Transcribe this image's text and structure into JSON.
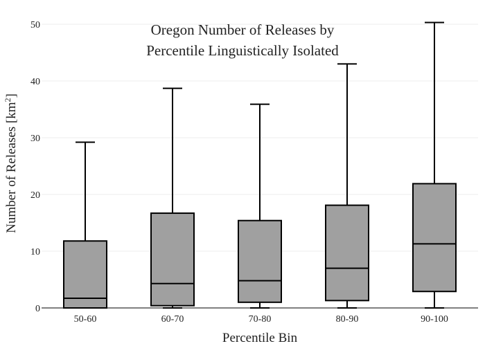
{
  "chart_data": {
    "type": "box",
    "title_lines": [
      "Oregon Number of Releases by",
      "Percentile Linguistically Isolated"
    ],
    "xlabel": "Percentile Bin",
    "ylabel": "Number of Releases  [km",
    "ylabel_sup": "2",
    "ylabel_close": "]",
    "ylim": [
      0,
      50
    ],
    "yticks": [
      0,
      10,
      20,
      30,
      40,
      50
    ],
    "grid": true,
    "categories": [
      "50-60",
      "60-70",
      "70-80",
      "80-90",
      "90-100"
    ],
    "boxes": [
      {
        "min": 0,
        "q1": 0,
        "median": 1.7,
        "q3": 11.8,
        "max": 29.2
      },
      {
        "min": 0,
        "q1": 0.4,
        "median": 4.3,
        "q3": 16.7,
        "max": 38.7
      },
      {
        "min": 0,
        "q1": 1.0,
        "median": 4.8,
        "q3": 15.4,
        "max": 35.9
      },
      {
        "min": 0,
        "q1": 1.3,
        "median": 7.0,
        "q3": 18.1,
        "max": 43.0
      },
      {
        "min": 0,
        "q1": 2.9,
        "median": 11.3,
        "q3": 21.9,
        "max": 50.3
      }
    ],
    "colors": {
      "box_fill": "#a0a0a0",
      "line": "#000000",
      "grid": "#eeeeee"
    }
  }
}
